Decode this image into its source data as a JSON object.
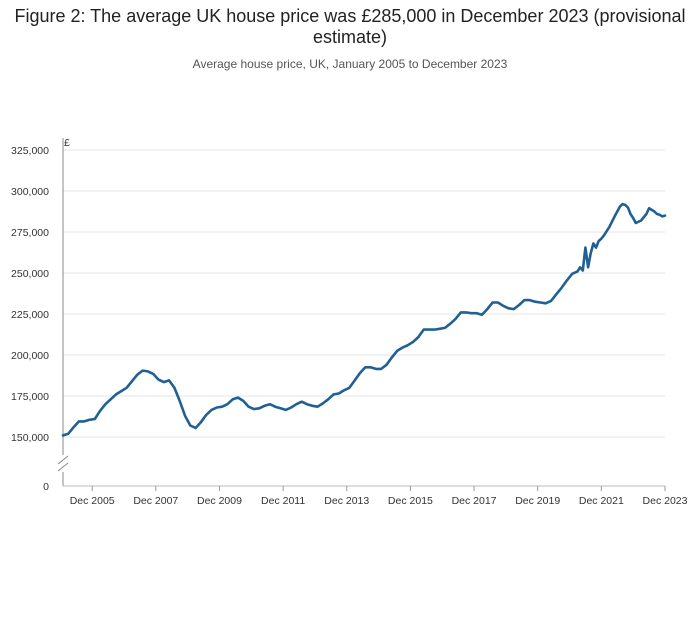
{
  "chart_data": {
    "type": "line",
    "title": "Figure 2: The average UK house price was £285,000 in December 2023 (provisional estimate)",
    "subtitle": "Average house price, UK, January 2005 to December 2023",
    "ylabel": "£",
    "xlabel": "",
    "ylim": [
      0,
      325000
    ],
    "y_axis_break": true,
    "grid": "horizontal",
    "y_ticks": [
      0,
      150000,
      175000,
      200000,
      225000,
      250000,
      275000,
      300000,
      325000
    ],
    "y_tick_labels": [
      "0",
      "150,000",
      "175,000",
      "200,000",
      "225,000",
      "250,000",
      "275,000",
      "300,000",
      "325,000"
    ],
    "x_tick_labels": [
      "Dec 2005",
      "Dec 2007",
      "Dec 2009",
      "Dec 2011",
      "Dec 2013",
      "Dec 2015",
      "Dec 2017",
      "Dec 2019",
      "Dec 2021",
      "Dec 2023"
    ],
    "x_tick_values": [
      "2005-12",
      "2007-12",
      "2009-12",
      "2011-12",
      "2013-12",
      "2015-12",
      "2017-12",
      "2019-12",
      "2021-12",
      "2023-12"
    ],
    "line_color": "#206095",
    "series": [
      {
        "points": [
          [
            "2005-01",
            151000
          ],
          [
            "2005-03",
            152000
          ],
          [
            "2005-05",
            156000
          ],
          [
            "2005-07",
            159500
          ],
          [
            "2005-09",
            159500
          ],
          [
            "2005-11",
            160500
          ],
          [
            "2006-01",
            161000
          ],
          [
            "2006-03",
            166000
          ],
          [
            "2006-05",
            170000
          ],
          [
            "2006-07",
            173000
          ],
          [
            "2006-09",
            176000
          ],
          [
            "2006-11",
            178000
          ],
          [
            "2007-01",
            180000
          ],
          [
            "2007-03",
            184000
          ],
          [
            "2007-05",
            188000
          ],
          [
            "2007-07",
            190500
          ],
          [
            "2007-09",
            190000
          ],
          [
            "2007-11",
            188500
          ],
          [
            "2008-01",
            185000
          ],
          [
            "2008-03",
            183500
          ],
          [
            "2008-05",
            184500
          ],
          [
            "2008-07",
            180000
          ],
          [
            "2008-09",
            172000
          ],
          [
            "2008-11",
            163000
          ],
          [
            "2009-01",
            157000
          ],
          [
            "2009-03",
            155500
          ],
          [
            "2009-05",
            159000
          ],
          [
            "2009-07",
            163500
          ],
          [
            "2009-09",
            166500
          ],
          [
            "2009-11",
            168000
          ],
          [
            "2010-01",
            168500
          ],
          [
            "2010-03",
            170000
          ],
          [
            "2010-05",
            173000
          ],
          [
            "2010-07",
            174000
          ],
          [
            "2010-09",
            172000
          ],
          [
            "2010-11",
            168500
          ],
          [
            "2011-01",
            167000
          ],
          [
            "2011-03",
            167500
          ],
          [
            "2011-05",
            169000
          ],
          [
            "2011-07",
            170000
          ],
          [
            "2011-09",
            168500
          ],
          [
            "2011-11",
            167500
          ],
          [
            "2012-01",
            166500
          ],
          [
            "2012-03",
            168000
          ],
          [
            "2012-05",
            170000
          ],
          [
            "2012-07",
            171500
          ],
          [
            "2012-09",
            170000
          ],
          [
            "2012-11",
            169000
          ],
          [
            "2013-01",
            168500
          ],
          [
            "2013-03",
            170500
          ],
          [
            "2013-05",
            173000
          ],
          [
            "2013-07",
            176000
          ],
          [
            "2013-09",
            176500
          ],
          [
            "2013-11",
            178500
          ],
          [
            "2014-01",
            180000
          ],
          [
            "2014-03",
            184500
          ],
          [
            "2014-05",
            189000
          ],
          [
            "2014-07",
            192500
          ],
          [
            "2014-09",
            192500
          ],
          [
            "2014-11",
            191500
          ],
          [
            "2015-01",
            191500
          ],
          [
            "2015-03",
            194000
          ],
          [
            "2015-05",
            198500
          ],
          [
            "2015-07",
            202500
          ],
          [
            "2015-09",
            204500
          ],
          [
            "2015-11",
            206000
          ],
          [
            "2016-01",
            208000
          ],
          [
            "2016-03",
            211000
          ],
          [
            "2016-05",
            215500
          ],
          [
            "2016-07",
            215500
          ],
          [
            "2016-09",
            215500
          ],
          [
            "2016-11",
            216000
          ],
          [
            "2017-01",
            216500
          ],
          [
            "2017-03",
            219000
          ],
          [
            "2017-05",
            222000
          ],
          [
            "2017-07",
            226000
          ],
          [
            "2017-09",
            226000
          ],
          [
            "2017-11",
            225500
          ],
          [
            "2018-01",
            225500
          ],
          [
            "2018-03",
            224500
          ],
          [
            "2018-05",
            228000
          ],
          [
            "2018-07",
            232000
          ],
          [
            "2018-09",
            232000
          ],
          [
            "2018-11",
            230000
          ],
          [
            "2019-01",
            228500
          ],
          [
            "2019-03",
            228000
          ],
          [
            "2019-05",
            230500
          ],
          [
            "2019-07",
            233500
          ],
          [
            "2019-09",
            233500
          ],
          [
            "2019-11",
            232500
          ],
          [
            "2020-01",
            232000
          ],
          [
            "2020-03",
            231500
          ],
          [
            "2020-05",
            233000
          ],
          [
            "2020-07",
            237000
          ],
          [
            "2020-09",
            241000
          ],
          [
            "2020-11",
            245500
          ],
          [
            "2021-01",
            249500
          ],
          [
            "2021-03",
            251000
          ],
          [
            "2021-04",
            253500
          ],
          [
            "2021-05",
            251500
          ],
          [
            "2021-06",
            265500
          ],
          [
            "2021-07",
            253500
          ],
          [
            "2021-08",
            262000
          ],
          [
            "2021-09",
            268000
          ],
          [
            "2021-10",
            265500
          ],
          [
            "2021-11",
            269500
          ],
          [
            "2021-12",
            271000
          ],
          [
            "2022-01",
            273000
          ],
          [
            "2022-03",
            278000
          ],
          [
            "2022-05",
            284500
          ],
          [
            "2022-07",
            290500
          ],
          [
            "2022-08",
            292000
          ],
          [
            "2022-09",
            291500
          ],
          [
            "2022-10",
            290000
          ],
          [
            "2022-11",
            286000
          ],
          [
            "2022-12",
            283500
          ],
          [
            "2023-01",
            280500
          ],
          [
            "2023-03",
            282000
          ],
          [
            "2023-05",
            286000
          ],
          [
            "2023-06",
            289500
          ],
          [
            "2023-07",
            288500
          ],
          [
            "2023-08",
            287500
          ],
          [
            "2023-09",
            286000
          ],
          [
            "2023-10",
            285500
          ],
          [
            "2023-11",
            284500
          ],
          [
            "2023-12",
            285000
          ]
        ]
      }
    ]
  }
}
